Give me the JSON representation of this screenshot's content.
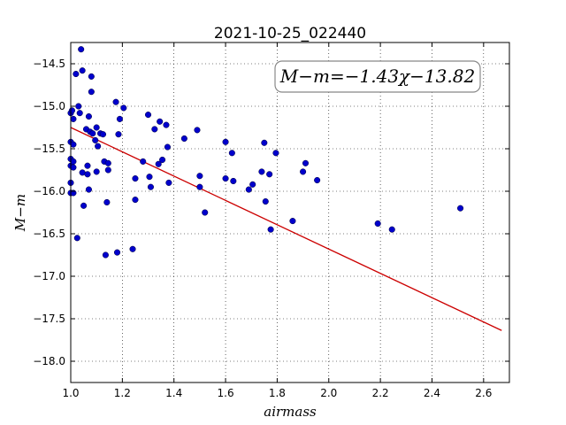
{
  "chart_data": {
    "type": "scatter",
    "title": "2021-10-25_022440",
    "xlabel": "airmass",
    "ylabel": "M−m",
    "xlim": [
      1.0,
      2.7
    ],
    "ylim": [
      -18.25,
      -14.25
    ],
    "xticks": [
      1.0,
      1.2,
      1.4,
      1.6,
      1.8,
      2.0,
      2.2,
      2.4,
      2.6
    ],
    "yticks": [
      -14.5,
      -15.0,
      -15.5,
      -16.0,
      -16.5,
      -17.0,
      -17.5,
      -18.0
    ],
    "xtick_labels": [
      "1.0",
      "1.2",
      "1.4",
      "1.6",
      "1.8",
      "2.0",
      "2.2",
      "2.4",
      "2.6"
    ],
    "ytick_labels": [
      "−14.5",
      "−15.0",
      "−15.5",
      "−16.0",
      "−16.5",
      "−17.0",
      "−17.5",
      "−18.0"
    ],
    "grid": true,
    "annotation": "M−m=−1.43χ−13.82",
    "annotation_position": "top-right",
    "fit_line": {
      "slope": -1.43,
      "intercept": -13.82,
      "x_range": [
        1.0,
        2.67
      ],
      "color": "#cc0000"
    },
    "point_color": "#0000cc",
    "points": [
      [
        1.0,
        -15.08
      ],
      [
        1.0,
        -15.42
      ],
      [
        1.0,
        -15.62
      ],
      [
        1.0,
        -15.7
      ],
      [
        1.0,
        -15.9
      ],
      [
        1.0,
        -16.02
      ],
      [
        1.005,
        -15.05
      ],
      [
        1.01,
        -15.15
      ],
      [
        1.01,
        -15.45
      ],
      [
        1.01,
        -15.65
      ],
      [
        1.01,
        -15.72
      ],
      [
        1.01,
        -16.02
      ],
      [
        1.02,
        -14.62
      ],
      [
        1.025,
        -16.55
      ],
      [
        1.03,
        -15.0
      ],
      [
        1.035,
        -15.08
      ],
      [
        1.04,
        -14.33
      ],
      [
        1.045,
        -14.58
      ],
      [
        1.045,
        -15.78
      ],
      [
        1.05,
        -16.17
      ],
      [
        1.06,
        -15.27
      ],
      [
        1.065,
        -15.7
      ],
      [
        1.065,
        -15.8
      ],
      [
        1.07,
        -15.12
      ],
      [
        1.07,
        -15.98
      ],
      [
        1.075,
        -15.3
      ],
      [
        1.08,
        -14.65
      ],
      [
        1.08,
        -14.83
      ],
      [
        1.085,
        -15.32
      ],
      [
        1.095,
        -15.4
      ],
      [
        1.1,
        -15.25
      ],
      [
        1.1,
        -15.77
      ],
      [
        1.105,
        -15.47
      ],
      [
        1.115,
        -15.32
      ],
      [
        1.125,
        -15.33
      ],
      [
        1.13,
        -15.65
      ],
      [
        1.135,
        -16.75
      ],
      [
        1.14,
        -16.13
      ],
      [
        1.145,
        -15.67
      ],
      [
        1.145,
        -15.75
      ],
      [
        1.175,
        -14.95
      ],
      [
        1.18,
        -16.72
      ],
      [
        1.185,
        -15.33
      ],
      [
        1.19,
        -15.15
      ],
      [
        1.205,
        -15.02
      ],
      [
        1.24,
        -16.68
      ],
      [
        1.25,
        -15.85
      ],
      [
        1.25,
        -16.1
      ],
      [
        1.28,
        -15.65
      ],
      [
        1.3,
        -15.1
      ],
      [
        1.305,
        -15.83
      ],
      [
        1.31,
        -15.95
      ],
      [
        1.325,
        -15.27
      ],
      [
        1.34,
        -15.68
      ],
      [
        1.345,
        -15.18
      ],
      [
        1.355,
        -15.63
      ],
      [
        1.37,
        -15.22
      ],
      [
        1.375,
        -15.48
      ],
      [
        1.38,
        -15.9
      ],
      [
        1.44,
        -15.38
      ],
      [
        1.49,
        -15.28
      ],
      [
        1.5,
        -15.82
      ],
      [
        1.5,
        -15.95
      ],
      [
        1.52,
        -16.25
      ],
      [
        1.6,
        -15.42
      ],
      [
        1.6,
        -15.85
      ],
      [
        1.625,
        -15.55
      ],
      [
        1.63,
        -15.88
      ],
      [
        1.69,
        -15.98
      ],
      [
        1.705,
        -15.92
      ],
      [
        1.74,
        -15.77
      ],
      [
        1.75,
        -15.43
      ],
      [
        1.755,
        -16.12
      ],
      [
        1.77,
        -15.8
      ],
      [
        1.775,
        -16.45
      ],
      [
        1.795,
        -15.55
      ],
      [
        1.86,
        -16.35
      ],
      [
        1.9,
        -15.77
      ],
      [
        1.91,
        -15.67
      ],
      [
        1.955,
        -15.87
      ],
      [
        2.19,
        -16.38
      ],
      [
        2.245,
        -16.45
      ],
      [
        2.51,
        -16.2
      ]
    ]
  }
}
